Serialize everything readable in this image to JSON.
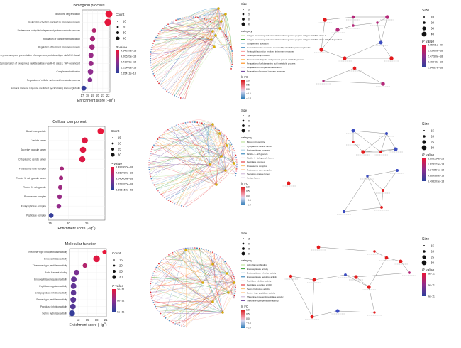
{
  "colors": {
    "dot_red": "#e31a1c",
    "dot_blue": "#3b4cc0",
    "gradient_top": "#e8163a",
    "gradient_mid": "#8e2d8e",
    "gradient_bottom": "#2b3f9b",
    "fc_top": "#d7191c",
    "fc_bottom": "#2c7bb6",
    "edge_grey": "#8c8c8c"
  },
  "chart_data": [
    {
      "type": "scatter",
      "panel": "dotplot",
      "title": "Biological process",
      "xlabel": "Enrichment score (−lg",
      "xlabel_sup": "P",
      "xlabel_end": ")",
      "xlim": [
        17,
        22.4
      ],
      "xticks": [
        "17",
        "18",
        "19",
        "20",
        "21",
        "22"
      ],
      "categories": [
        "Neutrophil degranulation",
        "Neutrophil activation involved in immune response",
        "Proteasomal ubiquitin-independent protein catabolic process",
        "Regulation of complement activation",
        "Regulation of humoral immune response",
        "Antigen processing and presentation of exogenous peptide antigen via MHC class I",
        "Antigen processing and presentation of exogenous peptide antigen via MHC class I, TAP-dependent",
        "Complement activation",
        "Regulation of cellular amino acid metabolic process",
        "Humoral immune response mediated by circulating immunoglobulin"
      ],
      "values": [
        22.2,
        22.0,
        19.3,
        19.0,
        18.9,
        18.7,
        18.7,
        18.6,
        18.5,
        17.3
      ],
      "sizes": [
        40,
        38,
        10,
        18,
        20,
        17,
        16,
        22,
        14,
        15
      ],
      "color_frac": [
        0.0,
        0.02,
        0.3,
        0.35,
        0.4,
        0.45,
        0.45,
        0.5,
        0.55,
        0.95
      ],
      "size_legend": {
        "title": "Count",
        "values": [
          "10",
          "20",
          "30",
          "40"
        ]
      },
      "p_legend": {
        "title_p": "P",
        "title_rest": " value",
        "ticks": [
          "4.54287e−18",
          "9.00620e−18",
          "2.41298e−18",
          "1.25409e−18",
          "2.65411e−18"
        ]
      }
    },
    {
      "type": "scatter",
      "panel": "dotplot",
      "title": "Cellular component",
      "xlabel": "Enrichment score (−lg",
      "xlabel_sup": "P",
      "xlabel_end": ")",
      "xlim": [
        14.5,
        30
      ],
      "xticks": [
        "15",
        "20",
        "25"
      ],
      "categories": [
        "Blood microparticle",
        "Vesicle lumen",
        "Secretory granule lumen",
        "Cytoplasmic vesicle lumen",
        "Proteasome core complex",
        "Ficolin−1−rich granule lumen",
        "Ficolin−1−rich granule",
        "Proteasome complex",
        "Endopeptidase complex",
        "Peptidase complex"
      ],
      "values": [
        28.8,
        24.5,
        24.0,
        23.8,
        18.2,
        18.0,
        17.8,
        17.6,
        17.4,
        15.3
      ],
      "sizes": [
        30,
        28,
        28,
        27,
        10,
        11,
        12,
        13,
        13,
        14
      ],
      "color_frac": [
        0.0,
        0.05,
        0.05,
        0.07,
        0.38,
        0.4,
        0.42,
        0.45,
        0.48,
        0.95
      ],
      "size_legend": {
        "title": "Count",
        "values": [
          "15",
          "20",
          "25",
          "30"
        ]
      },
      "p_legend": {
        "title_p": "P",
        "title_rest": " value",
        "ticks": [
          "6.493307e−18",
          "4.869980e−18",
          "3.246654e−18",
          "1.623327e−18",
          "3.605154e−28"
        ]
      }
    },
    {
      "type": "scatter",
      "panel": "dotplot",
      "title": "Molecular function",
      "xlabel": "Enrichment score (−lg",
      "xlabel_sup": "P",
      "xlabel_end": ")",
      "xlim": [
        9.2,
        21.2
      ],
      "xticks": [
        "12",
        "15",
        "18",
        "21"
      ],
      "categories": [
        "Threonine−type endopeptidase activity",
        "Endopeptidase activity",
        "Threonine−type peptidase activity",
        "Actin filament binding",
        "Endopeptidase regulator activity",
        "Peptidase regulator activity",
        "Endopeptidase inhibitor activity",
        "Serine−type peptidase activity",
        "Peptidase inhibitor activity",
        "Serine hydrolase activity"
      ],
      "values": [
        20.6,
        18.0,
        14.2,
        11.5,
        10.6,
        10.5,
        10.5,
        10.4,
        10.3,
        10.0
      ],
      "sizes": [
        10,
        36,
        12,
        20,
        22,
        23,
        21,
        24,
        22,
        26
      ],
      "color_frac": [
        0.0,
        0.05,
        0.3,
        0.6,
        0.7,
        0.72,
        0.74,
        0.76,
        0.8,
        0.95
      ],
      "size_legend": {
        "title": "Count",
        "values": [
          "15",
          "20",
          "25",
          "30"
        ]
      },
      "p_legend": {
        "title_p": "P",
        "title_rest": " value",
        "ticks": [
          "3e−11",
          "6e−11",
          "9e−11"
        ]
      }
    },
    {
      "type": "network",
      "panel": "cnetplot",
      "size_legend": {
        "title": "Size",
        "values": [
          "10",
          "20",
          "30",
          "40"
        ]
      },
      "fc_legend": {
        "title": "ln FC",
        "ticks": [
          "1.0",
          "0.5",
          "0.0",
          "−0.5",
          "−1.0"
        ]
      },
      "category_title": "category",
      "categories": [
        "Antigen processing and presentation of exogenous peptide antigen via MHC class I",
        "Antigen processing and presentation of exogenous peptide antigen via MHC class I, TAP−dependent",
        "Complement activation",
        "Humoral immune response mediated by circulating immunoglobulin",
        "Neutrophil activation involved in immune response",
        "Neutrophil degranulation",
        "Proteasomal ubiquitin−independent protein catabolic process",
        "Regulation of cellular amino acid metabolic process",
        "Regulation of complement activation",
        "Regulation of humoral immune response"
      ]
    },
    {
      "type": "network",
      "panel": "cnetplot",
      "size_legend": {
        "title": "Size",
        "values": [
          "15",
          "20",
          "25",
          "30"
        ]
      },
      "fc_legend": {
        "title": "ln FC",
        "ticks": [
          "1.0",
          "0.5",
          "0.0",
          "−0.5",
          "−1.0"
        ]
      },
      "category_title": "category",
      "categories": [
        "Blood microparticle",
        "Cytoplasmic vesicle lumen",
        "Endopeptidase complex",
        "Ficolin−1−rich granule",
        "Ficolin−1−rich granule lumen",
        "Peptidase complex",
        "Proteasome complex",
        "Proteasome core complex",
        "Secretory granule lumen",
        "Vesicle lumen"
      ]
    },
    {
      "type": "network",
      "panel": "cnetplot",
      "size_legend": {
        "title": "Size",
        "values": [
          "15",
          "20",
          "25",
          "30"
        ]
      },
      "fc_legend": {
        "title": "ln FC",
        "ticks": [
          "1.0",
          "0.5",
          "0.0",
          "−0.5",
          "−1.0"
        ]
      },
      "category_title": "category",
      "categories": [
        "Actin filament binding",
        "Endopeptidase activity",
        "Endopeptidase inhibitor activity",
        "Endopeptidase regulator activity",
        "Peptidase inhibitor activity",
        "Peptidase regulator activity",
        "Serine hydrolase activity",
        "Serine−type peptidase activity",
        "Threonine−type endopeptidase activity",
        "Threonine−type peptidase activity"
      ]
    },
    {
      "type": "network",
      "panel": "emapplot",
      "size_legend": {
        "title": "Size",
        "values": [
          "10",
          "20",
          "30",
          "40"
        ]
      },
      "p_legend": {
        "title_p": "P",
        "title_rest": " value",
        "ticks": [
          "8.05411e−20",
          "1.05460e−18",
          "2.47280e−18",
          "3.76348e−18",
          "2.84387e−18"
        ]
      }
    },
    {
      "type": "network",
      "panel": "emapplot",
      "size_legend": {
        "title": "Size",
        "values": [
          "15",
          "20",
          "25",
          "30"
        ]
      },
      "p_legend": {
        "title_p": "P",
        "title_rest": " value",
        "ticks": [
          "3.605154e−28",
          "1.623327e−18",
          "3.246654e−18",
          "4.869980e−18",
          "6.493307e−18"
        ]
      }
    },
    {
      "type": "network",
      "panel": "emapplot",
      "size_legend": {
        "title": "Size",
        "values": [
          "15",
          "20",
          "25",
          "30"
        ]
      },
      "p_legend": {
        "title_p": "P",
        "title_rest": " value",
        "ticks": [
          "3e−11",
          "6e−11",
          "9e−11"
        ]
      }
    }
  ]
}
